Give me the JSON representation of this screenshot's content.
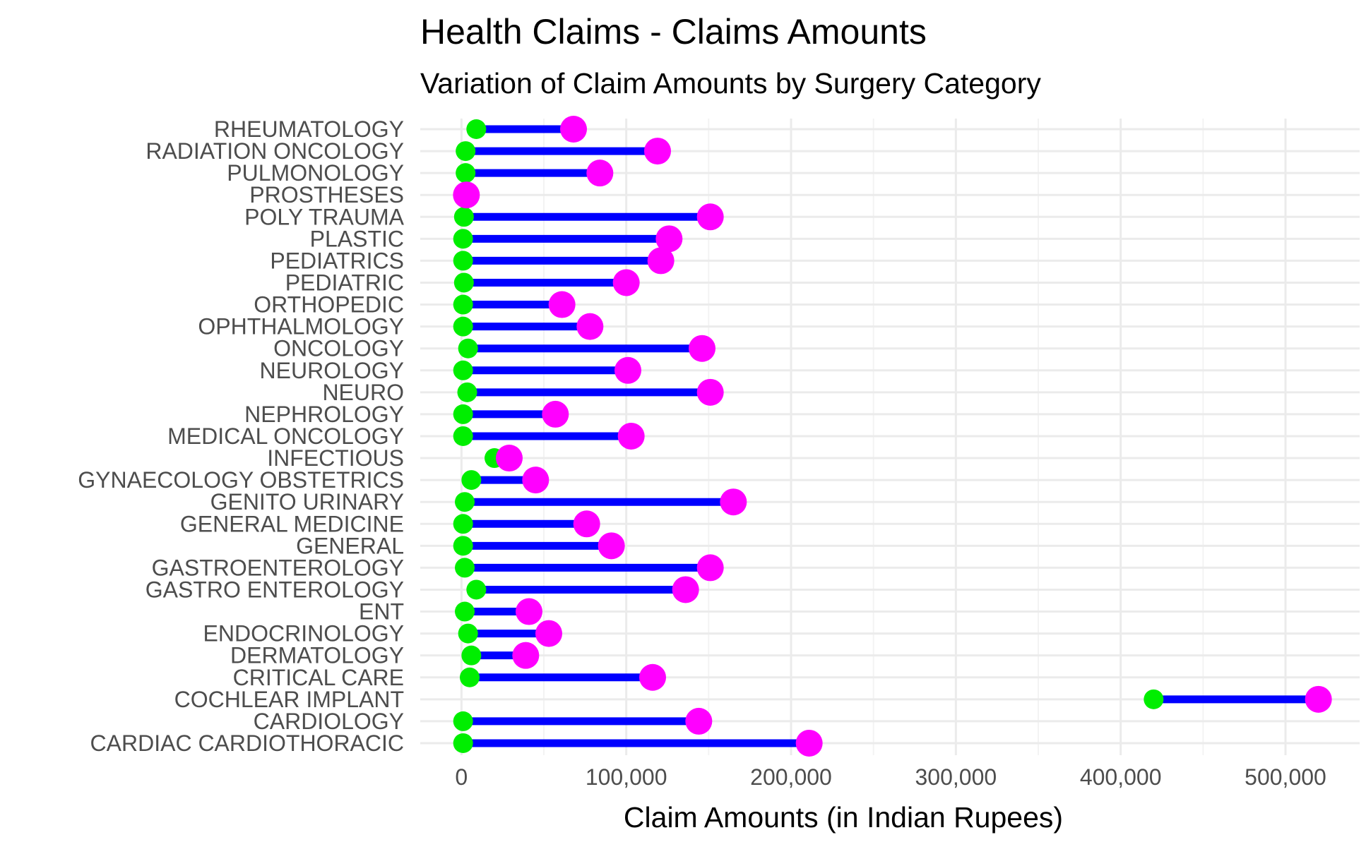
{
  "chart_data": {
    "type": "dumbbell",
    "title": "Health Claims - Claims Amounts",
    "subtitle": "Variation of Claim Amounts by Surgery Category",
    "xlabel": "Claim Amounts (in Indian Rupees)",
    "ylabel": "",
    "xlim": [
      -25000,
      545000
    ],
    "x_ticks": [
      0,
      100000,
      200000,
      300000,
      400000,
      500000
    ],
    "x_tick_labels": [
      "0",
      "100,000",
      "200,000",
      "300,000",
      "400,000",
      "500,000"
    ],
    "grid": true,
    "legend": "none",
    "colors": {
      "min": "#00ee00",
      "max": "#ff00ff",
      "segment": "#0000ff"
    },
    "categories": [
      "RHEUMATOLOGY",
      "RADIATION ONCOLOGY",
      "PULMONOLOGY",
      "PROSTHESES",
      "POLY TRAUMA",
      "PLASTIC",
      "PEDIATRICS",
      "PEDIATRIC",
      "ORTHOPEDIC",
      "OPHTHALMOLOGY",
      "ONCOLOGY",
      "NEUROLOGY",
      "NEURO",
      "NEPHROLOGY",
      "MEDICAL ONCOLOGY",
      "INFECTIOUS",
      "GYNAECOLOGY  OBSTETRICS",
      "GENITO URINARY",
      "GENERAL MEDICINE",
      "GENERAL",
      "GASTROENTEROLOGY",
      "GASTRO ENTEROLOGY",
      "ENT",
      "ENDOCRINOLOGY",
      "DERMATOLOGY",
      "CRITICAL CARE",
      "COCHLEAR IMPLANT",
      "CARDIOLOGY",
      "CARDIAC  CARDIOTHORACIC"
    ],
    "series": [
      {
        "name": "min",
        "values": [
          9000,
          2500,
          2500,
          3000,
          1500,
          1000,
          1000,
          1500,
          1000,
          1000,
          4000,
          1000,
          3500,
          1000,
          1000,
          20000,
          6000,
          2000,
          1000,
          1000,
          2000,
          9000,
          2000,
          4000,
          6000,
          5000,
          420000,
          1000,
          1000
        ]
      },
      {
        "name": "max",
        "values": [
          68000,
          119000,
          84000,
          3000,
          151000,
          126000,
          121000,
          100000,
          61000,
          78000,
          146000,
          101000,
          151000,
          57000,
          103000,
          29000,
          45000,
          165000,
          76000,
          91000,
          151000,
          136000,
          41000,
          53000,
          39000,
          116000,
          520000,
          144000,
          211000
        ]
      }
    ]
  }
}
